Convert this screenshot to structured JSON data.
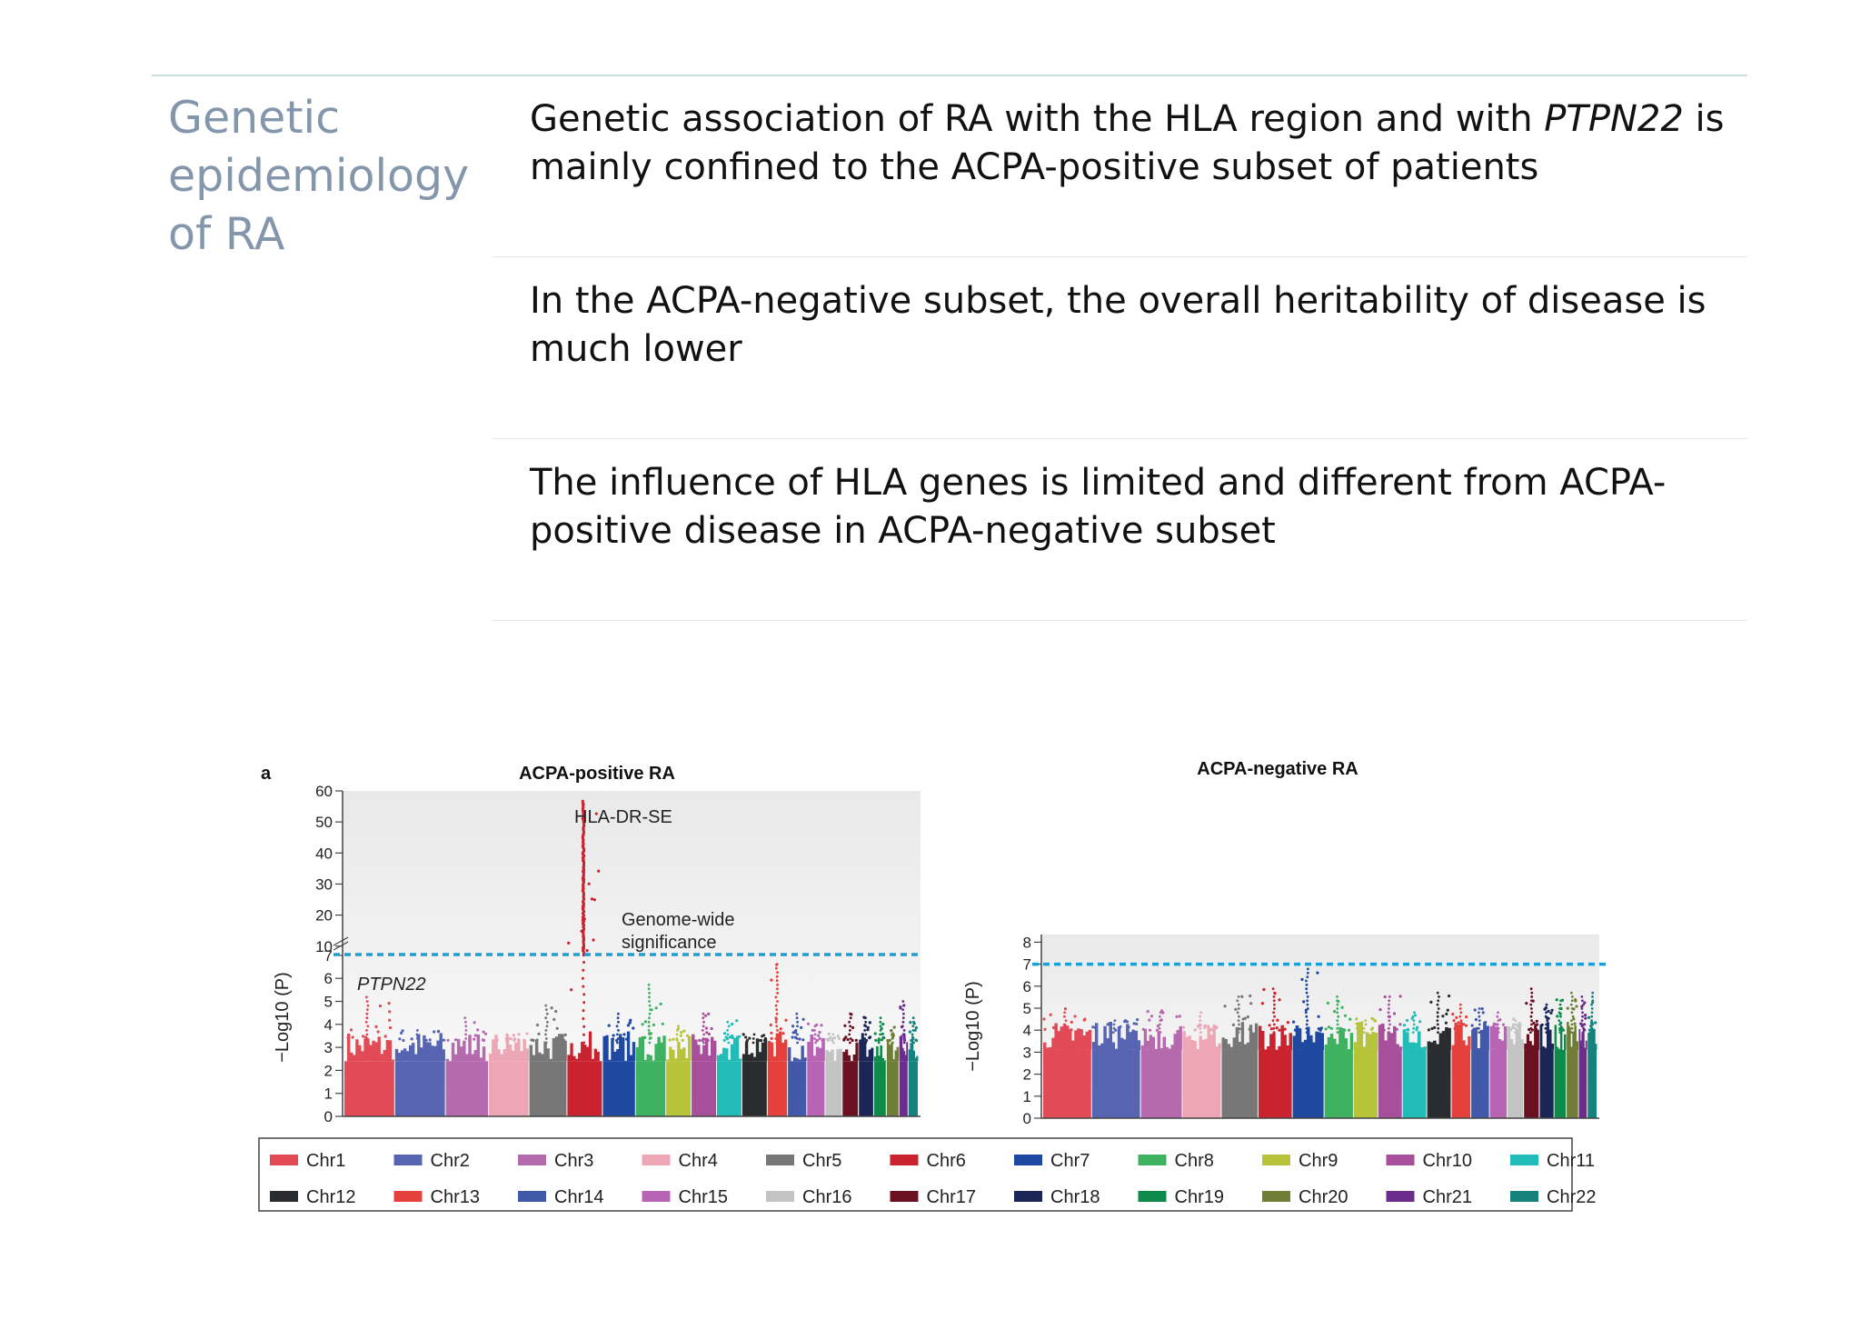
{
  "slide": {
    "title": "Genetic epidemiology of RA",
    "bullets": [
      {
        "pre": "Genetic association of RA with the HLA region and with ",
        "italic": "PTPN22",
        "post": " is mainly confined to the ACPA-positive subset of patients"
      },
      {
        "pre": "In the ACPA-negative subset, the overall heritability of disease is much lower",
        "italic": "",
        "post": ""
      },
      {
        "pre": "The influence of HLA genes is limited and different from ACPA-positive disease in ACPA-negative subset",
        "italic": "",
        "post": ""
      }
    ]
  },
  "figure": {
    "panel_label": "a"
  },
  "chart_data": [
    {
      "type": "scatter",
      "title": "ACPA-positive RA",
      "ylabel": "−Log10 (P)",
      "yticks": [
        0,
        1,
        2,
        3,
        4,
        5,
        6,
        7,
        10,
        20,
        30,
        40,
        50,
        60
      ],
      "ylim": [
        0,
        60
      ],
      "axis_break": "between 7 and 10",
      "significance_threshold": 7.3,
      "threshold_label": "Genome-wide significance",
      "annotations": [
        {
          "label": "HLA-DR-SE",
          "chromosome": "Chr6",
          "value": 57
        },
        {
          "label": "PTPN22",
          "chromosome": "Chr1",
          "value": 5.3
        }
      ],
      "series": [
        {
          "name": "Chr1",
          "max": 5.3
        },
        {
          "name": "Chr2",
          "max": 3.8
        },
        {
          "name": "Chr3",
          "max": 4.3
        },
        {
          "name": "Chr4",
          "max": 3.6
        },
        {
          "name": "Chr5",
          "max": 4.9
        },
        {
          "name": "Chr6",
          "max": 57
        },
        {
          "name": "Chr7",
          "max": 4.5
        },
        {
          "name": "Chr8",
          "max": 5.8
        },
        {
          "name": "Chr9",
          "max": 4.0
        },
        {
          "name": "Chr10",
          "max": 4.5
        },
        {
          "name": "Chr11",
          "max": 4.2
        },
        {
          "name": "Chr12",
          "max": 3.7
        },
        {
          "name": "Chr13",
          "max": 6.7
        },
        {
          "name": "Chr14",
          "max": 4.6
        },
        {
          "name": "Chr15",
          "max": 4.1
        },
        {
          "name": "Chr16",
          "max": 3.6
        },
        {
          "name": "Chr17",
          "max": 4.6
        },
        {
          "name": "Chr18",
          "max": 4.4
        },
        {
          "name": "Chr19",
          "max": 4.3
        },
        {
          "name": "Chr20",
          "max": 3.9
        },
        {
          "name": "Chr21",
          "max": 5.1
        },
        {
          "name": "Chr22",
          "max": 4.4
        }
      ]
    },
    {
      "type": "scatter",
      "title": "ACPA-negative RA",
      "ylabel": "−Log10 (P)",
      "yticks": [
        0,
        1,
        2,
        3,
        4,
        5,
        6,
        7,
        8
      ],
      "ylim": [
        0,
        8
      ],
      "significance_threshold": 7.0,
      "series": [
        {
          "name": "Chr1",
          "max": 5.0
        },
        {
          "name": "Chr2",
          "max": 4.6
        },
        {
          "name": "Chr3",
          "max": 4.9
        },
        {
          "name": "Chr4",
          "max": 4.8
        },
        {
          "name": "Chr5",
          "max": 5.6
        },
        {
          "name": "Chr6",
          "max": 6.0
        },
        {
          "name": "Chr7",
          "max": 6.9
        },
        {
          "name": "Chr8",
          "max": 5.6
        },
        {
          "name": "Chr9",
          "max": 4.6
        },
        {
          "name": "Chr10",
          "max": 5.6
        },
        {
          "name": "Chr11",
          "max": 4.8
        },
        {
          "name": "Chr12",
          "max": 5.7
        },
        {
          "name": "Chr13",
          "max": 5.3
        },
        {
          "name": "Chr14",
          "max": 5.0
        },
        {
          "name": "Chr15",
          "max": 4.8
        },
        {
          "name": "Chr16",
          "max": 4.6
        },
        {
          "name": "Chr17",
          "max": 5.9
        },
        {
          "name": "Chr18",
          "max": 5.2
        },
        {
          "name": "Chr19",
          "max": 5.4
        },
        {
          "name": "Chr20",
          "max": 5.7
        },
        {
          "name": "Chr21",
          "max": 5.6
        },
        {
          "name": "Chr22",
          "max": 5.7
        }
      ]
    }
  ],
  "legend": {
    "placement": "bottom",
    "items": [
      {
        "label": "Chr1",
        "color": "#e24a56"
      },
      {
        "label": "Chr2",
        "color": "#5664b2"
      },
      {
        "label": "Chr3",
        "color": "#b56aae"
      },
      {
        "label": "Chr4",
        "color": "#eda6b4"
      },
      {
        "label": "Chr5",
        "color": "#777777"
      },
      {
        "label": "Chr6",
        "color": "#c8232f"
      },
      {
        "label": "Chr7",
        "color": "#1f48a1"
      },
      {
        "label": "Chr8",
        "color": "#3eb260"
      },
      {
        "label": "Chr9",
        "color": "#b7c43a"
      },
      {
        "label": "Chr10",
        "color": "#a84f9c"
      },
      {
        "label": "Chr11",
        "color": "#22bcb8"
      },
      {
        "label": "Chr12",
        "color": "#2a2d30"
      },
      {
        "label": "Chr13",
        "color": "#e5413c"
      },
      {
        "label": "Chr14",
        "color": "#4258a8"
      },
      {
        "label": "Chr15",
        "color": "#b864b5"
      },
      {
        "label": "Chr16",
        "color": "#c4c4c4"
      },
      {
        "label": "Chr17",
        "color": "#6a1020"
      },
      {
        "label": "Chr18",
        "color": "#1b2656"
      },
      {
        "label": "Chr19",
        "color": "#0e8a4a"
      },
      {
        "label": "Chr20",
        "color": "#6f7d37"
      },
      {
        "label": "Chr21",
        "color": "#6c2c8c"
      },
      {
        "label": "Chr22",
        "color": "#15827c"
      }
    ]
  },
  "colors": {
    "threshold": "#1aa0d8",
    "title_accent": "#8496ab"
  }
}
